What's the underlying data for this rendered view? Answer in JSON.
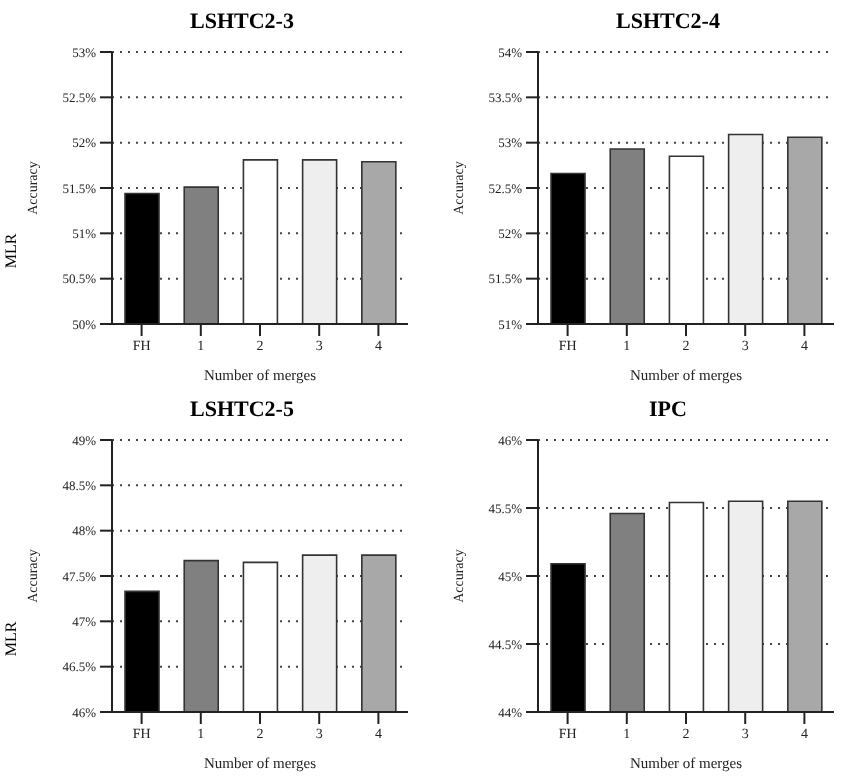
{
  "chart_data": [
    {
      "type": "bar",
      "title": "LSHTC2-3",
      "xlabel": "Number of merges",
      "ylabel": "Accuracy",
      "annotations": [
        "MLR"
      ],
      "categories": [
        "FH",
        "1",
        "2",
        "3",
        "4"
      ],
      "values": [
        51.44,
        51.51,
        51.81,
        51.81,
        51.79
      ],
      "colors": [
        "#000000",
        "#808080",
        "#ffffff",
        "#eeeeee",
        "#a8a8a8"
      ],
      "ylim": [
        50,
        53
      ],
      "yticks": [
        {
          "value": 50,
          "label": "50%"
        },
        {
          "value": 50.5,
          "label": "50.5%"
        },
        {
          "value": 51,
          "label": "51%"
        },
        {
          "value": 51.5,
          "label": "51.5%"
        },
        {
          "value": 52,
          "label": "52%"
        },
        {
          "value": 52.5,
          "label": "52.5%"
        },
        {
          "value": 53,
          "label": "53%"
        }
      ],
      "grid": "y"
    },
    {
      "type": "bar",
      "title": "LSHTC2-4",
      "xlabel": "Number of merges",
      "ylabel": "Accuracy",
      "categories": [
        "FH",
        "1",
        "2",
        "3",
        "4"
      ],
      "values": [
        52.66,
        52.93,
        52.85,
        53.09,
        53.06
      ],
      "colors": [
        "#000000",
        "#808080",
        "#ffffff",
        "#eeeeee",
        "#a8a8a8"
      ],
      "ylim": [
        51,
        54
      ],
      "yticks": [
        {
          "value": 51,
          "label": "51%"
        },
        {
          "value": 51.5,
          "label": "51.5%"
        },
        {
          "value": 52,
          "label": "52%"
        },
        {
          "value": 52.5,
          "label": "52.5%"
        },
        {
          "value": 53,
          "label": "53%"
        },
        {
          "value": 53.5,
          "label": "53.5%"
        },
        {
          "value": 54,
          "label": "54%"
        }
      ],
      "grid": "y"
    },
    {
      "type": "bar",
      "title": "LSHTC2-5",
      "xlabel": "Number of merges",
      "ylabel": "Accuracy",
      "annotations": [
        "MLR"
      ],
      "categories": [
        "FH",
        "1",
        "2",
        "3",
        "4"
      ],
      "values": [
        47.33,
        47.67,
        47.65,
        47.73,
        47.73
      ],
      "colors": [
        "#000000",
        "#808080",
        "#ffffff",
        "#eeeeee",
        "#a8a8a8"
      ],
      "ylim": [
        46,
        49
      ],
      "yticks": [
        {
          "value": 46,
          "label": "46%"
        },
        {
          "value": 46.5,
          "label": "46.5%"
        },
        {
          "value": 47,
          "label": "47%"
        },
        {
          "value": 47.5,
          "label": "47.5%"
        },
        {
          "value": 48,
          "label": "48%"
        },
        {
          "value": 48.5,
          "label": "48.5%"
        },
        {
          "value": 49,
          "label": "49%"
        }
      ],
      "grid": "y"
    },
    {
      "type": "bar",
      "title": "IPC",
      "xlabel": "Number of merges",
      "ylabel": "Accuracy",
      "categories": [
        "FH",
        "1",
        "2",
        "3",
        "4"
      ],
      "values": [
        45.09,
        45.46,
        45.54,
        45.55,
        45.55
      ],
      "colors": [
        "#000000",
        "#808080",
        "#ffffff",
        "#eeeeee",
        "#a8a8a8"
      ],
      "ylim": [
        44,
        46
      ],
      "yticks": [
        {
          "value": 44,
          "label": "44%"
        },
        {
          "value": 44.5,
          "label": "44.5%"
        },
        {
          "value": 45,
          "label": "45%"
        },
        {
          "value": 45.5,
          "label": "45.5%"
        },
        {
          "value": 46,
          "label": "46%"
        }
      ],
      "grid": "y"
    }
  ]
}
